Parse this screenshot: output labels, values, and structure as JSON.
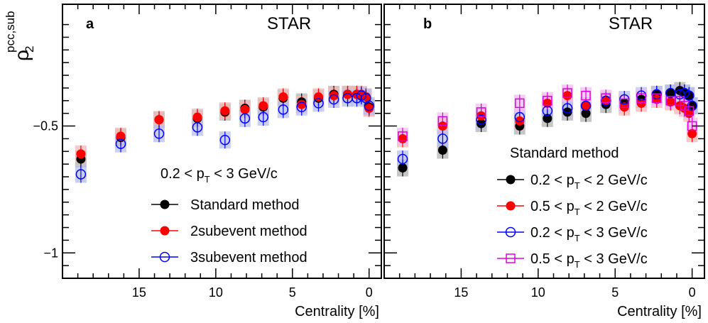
{
  "chart_data": [
    {
      "type": "scatter",
      "panel_label": "a",
      "experiment_label": "STAR",
      "ylabel": "ρ2pcc,sub",
      "ylabel_base": "ρ",
      "ylabel_sup": "pcc,sub",
      "ylabel_sub": "2",
      "xlabel": "Centrality [%]",
      "xlim": [
        20,
        -0.8
      ],
      "ylim": [
        -1.1,
        -0.02
      ],
      "xticks": [
        15,
        10,
        5,
        0
      ],
      "yticks": [
        -0.5,
        -1
      ],
      "ytick_labels": [
        "−0.5",
        "−1"
      ],
      "legend_title": "0.2 < pT < 3 GeV/c",
      "legend_title_parts": [
        "0.2 < p",
        "T",
        " < 3 GeV/c"
      ],
      "series": [
        {
          "name": "Standard method",
          "marker": "filled-circle",
          "color": "#000000",
          "band_color": "#b3b3b3",
          "x": [
            18.8,
            16.2,
            13.7,
            11.2,
            9.4,
            8.1,
            6.9,
            5.6,
            4.4,
            3.3,
            2.3,
            1.4,
            0.8,
            0.5,
            0.2,
            0.0
          ],
          "y": [
            -0.63,
            -0.545,
            -0.475,
            -0.47,
            -0.445,
            -0.43,
            -0.425,
            -0.39,
            -0.405,
            -0.39,
            -0.375,
            -0.375,
            -0.375,
            -0.38,
            -0.385,
            -0.425
          ]
        },
        {
          "name": "2subevent method",
          "marker": "filled-circle",
          "color": "#ff0000",
          "band_color": "#f4b8b8",
          "x": [
            18.8,
            16.2,
            13.7,
            11.2,
            9.4,
            8.1,
            6.9,
            5.6,
            4.4,
            3.3,
            2.3,
            1.4,
            0.8,
            0.5,
            0.2,
            0.0
          ],
          "y": [
            -0.61,
            -0.54,
            -0.475,
            -0.465,
            -0.44,
            -0.435,
            -0.42,
            -0.385,
            -0.415,
            -0.385,
            -0.38,
            -0.375,
            -0.375,
            -0.375,
            -0.385,
            -0.43
          ]
        },
        {
          "name": "3subevent method",
          "marker": "open-circle",
          "color": "#0000ff",
          "band_color": "#b8bff0",
          "x": [
            18.8,
            16.2,
            13.7,
            11.2,
            9.4,
            8.1,
            6.9,
            5.6,
            4.4,
            3.3,
            2.3,
            1.4,
            0.8,
            0.5,
            0.2,
            0.0
          ],
          "y": [
            -0.69,
            -0.57,
            -0.53,
            -0.505,
            -0.555,
            -0.47,
            -0.465,
            -0.435,
            -0.425,
            -0.41,
            -0.395,
            -0.39,
            -0.39,
            -0.38,
            -0.39,
            -0.42
          ]
        }
      ]
    },
    {
      "type": "scatter",
      "panel_label": "b",
      "experiment_label": "STAR",
      "xlabel": "Centrality [%]",
      "xlim": [
        20,
        -0.8
      ],
      "ylim": [
        -1.1,
        -0.02
      ],
      "xticks": [
        15,
        10,
        5,
        0
      ],
      "legend_title": "Standard method",
      "series": [
        {
          "name": "0.2 < pT < 2 GeV/c",
          "name_parts": [
            "0.2 < p",
            "T",
            " < 2 GeV/c"
          ],
          "marker": "filled-circle",
          "color": "#000000",
          "band_color": "#b3b3b3",
          "x": [
            18.8,
            16.2,
            13.7,
            11.2,
            9.4,
            8.1,
            6.9,
            5.6,
            4.4,
            3.3,
            2.3,
            1.4,
            0.8,
            0.5,
            0.2,
            0.0
          ],
          "y": [
            -0.665,
            -0.595,
            -0.49,
            -0.5,
            -0.47,
            -0.445,
            -0.45,
            -0.415,
            -0.41,
            -0.395,
            -0.375,
            -0.37,
            -0.36,
            -0.37,
            -0.38,
            -0.42
          ]
        },
        {
          "name": "0.5 < pT < 2 GeV/c",
          "name_parts": [
            "0.5 < p",
            "T",
            " < 2 GeV/c"
          ],
          "marker": "filled-circle",
          "color": "#ff0000",
          "band_color": "#f4b8b8",
          "x": [
            18.8,
            16.2,
            13.7,
            11.2,
            9.4,
            8.1,
            6.9,
            5.6,
            4.4,
            3.3,
            2.3,
            1.4,
            0.8,
            0.5,
            0.2,
            0.0
          ],
          "y": [
            -0.55,
            -0.5,
            -0.46,
            -0.48,
            -0.41,
            -0.38,
            -0.42,
            -0.4,
            -0.425,
            -0.41,
            -0.395,
            -0.405,
            -0.42,
            -0.43,
            -0.45,
            -0.53
          ]
        },
        {
          "name": "0.2 < pT < 3 GeV/c",
          "name_parts": [
            "0.2 < p",
            "T",
            " < 3 GeV/c"
          ],
          "marker": "open-circle",
          "color": "#0000ff",
          "band_color": "#b8bff0",
          "x": [
            18.8,
            16.2,
            13.7,
            11.2,
            9.4,
            8.1,
            6.9,
            5.6,
            4.4,
            3.3,
            2.3,
            1.4,
            0.8,
            0.5,
            0.2,
            0.0
          ],
          "y": [
            -0.63,
            -0.55,
            -0.475,
            -0.465,
            -0.44,
            -0.43,
            -0.42,
            -0.4,
            -0.395,
            -0.38,
            -0.375,
            -0.37,
            -0.375,
            -0.37,
            -0.38,
            -0.42
          ]
        },
        {
          "name": "0.5 < pT < 3 GeV/c",
          "name_parts": [
            "0.5 < p",
            "T",
            " < 3 GeV/c"
          ],
          "marker": "open-square",
          "color": "#dd00dd",
          "band_color": "#f0bdf0",
          "x": [
            18.8,
            16.2,
            13.7,
            11.2,
            9.4,
            8.1,
            6.9,
            5.6,
            4.4,
            3.3,
            2.3,
            1.4,
            0.8,
            0.5,
            0.2,
            0.0
          ],
          "y": [
            -0.54,
            -0.48,
            -0.445,
            -0.41,
            -0.4,
            -0.37,
            -0.38,
            -0.39,
            -0.41,
            -0.39,
            -0.39,
            -0.4,
            -0.4,
            -0.42,
            -0.44,
            -0.5
          ]
        }
      ]
    }
  ]
}
